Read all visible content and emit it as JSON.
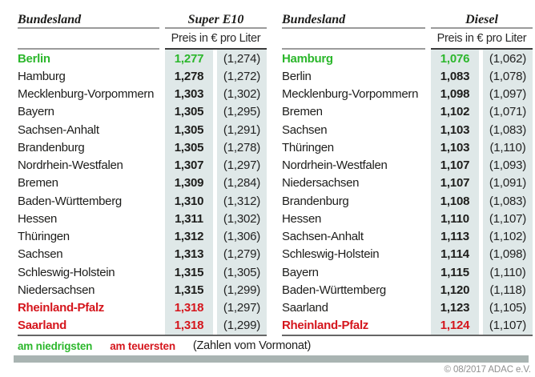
{
  "colors": {
    "green": "#2cb72c",
    "red": "#d5161d",
    "cell_bg": "#dfe8e8",
    "bar": "#a9b4b2"
  },
  "tables": [
    {
      "col_bundesland": "Bundesland",
      "col_fuel": "Super E10",
      "col_price_unit": "Preis in € pro Liter",
      "rows": [
        {
          "state": "Berlin",
          "price": "1,277",
          "prev": "(1,274)",
          "highlight": "green"
        },
        {
          "state": "Hamburg",
          "price": "1,278",
          "prev": "(1,272)",
          "highlight": ""
        },
        {
          "state": "Mecklenburg-Vorpommern",
          "price": "1,303",
          "prev": "(1,302)",
          "highlight": ""
        },
        {
          "state": "Bayern",
          "price": "1,305",
          "prev": "(1,295)",
          "highlight": ""
        },
        {
          "state": "Sachsen-Anhalt",
          "price": "1,305",
          "prev": "(1,291)",
          "highlight": ""
        },
        {
          "state": "Brandenburg",
          "price": "1,305",
          "prev": "(1,278)",
          "highlight": ""
        },
        {
          "state": "Nordrhein-Westfalen",
          "price": "1,307",
          "prev": "(1,297)",
          "highlight": ""
        },
        {
          "state": "Bremen",
          "price": "1,309",
          "prev": "(1,284)",
          "highlight": ""
        },
        {
          "state": "Baden-Württemberg",
          "price": "1,310",
          "prev": "(1,312)",
          "highlight": ""
        },
        {
          "state": "Hessen",
          "price": "1,311",
          "prev": "(1,302)",
          "highlight": ""
        },
        {
          "state": "Thüringen",
          "price": "1,312",
          "prev": "(1,306)",
          "highlight": ""
        },
        {
          "state": "Sachsen",
          "price": "1,313",
          "prev": "(1,279)",
          "highlight": ""
        },
        {
          "state": "Schleswig-Holstein",
          "price": "1,315",
          "prev": "(1,305)",
          "highlight": ""
        },
        {
          "state": "Niedersachsen",
          "price": "1,315",
          "prev": "(1,299)",
          "highlight": ""
        },
        {
          "state": "Rheinland-Pfalz",
          "price": "1,318",
          "prev": "(1,297)",
          "highlight": "red"
        },
        {
          "state": "Saarland",
          "price": "1,318",
          "prev": "(1,299)",
          "highlight": "red"
        }
      ]
    },
    {
      "col_bundesland": "Bundesland",
      "col_fuel": "Diesel",
      "col_price_unit": "Preis in € pro Liter",
      "rows": [
        {
          "state": "Hamburg",
          "price": "1,076",
          "prev": "(1,062)",
          "highlight": "green"
        },
        {
          "state": "Berlin",
          "price": "1,083",
          "prev": "(1,078)",
          "highlight": ""
        },
        {
          "state": "Mecklenburg-Vorpommern",
          "price": "1,098",
          "prev": "(1,097)",
          "highlight": ""
        },
        {
          "state": "Bremen",
          "price": "1,102",
          "prev": "(1,071)",
          "highlight": ""
        },
        {
          "state": "Sachsen",
          "price": "1,103",
          "prev": "(1,083)",
          "highlight": ""
        },
        {
          "state": "Thüringen",
          "price": "1,103",
          "prev": "(1,110)",
          "highlight": ""
        },
        {
          "state": "Nordrhein-Westfalen",
          "price": "1,107",
          "prev": "(1,093)",
          "highlight": ""
        },
        {
          "state": "Niedersachsen",
          "price": "1,107",
          "prev": "(1,091)",
          "highlight": ""
        },
        {
          "state": "Brandenburg",
          "price": "1,108",
          "prev": "(1,083)",
          "highlight": ""
        },
        {
          "state": "Hessen",
          "price": "1,110",
          "prev": "(1,107)",
          "highlight": ""
        },
        {
          "state": "Sachsen-Anhalt",
          "price": "1,113",
          "prev": "(1,102)",
          "highlight": ""
        },
        {
          "state": "Schleswig-Holstein",
          "price": "1,114",
          "prev": "(1,098)",
          "highlight": ""
        },
        {
          "state": "Bayern",
          "price": "1,115",
          "prev": "(1,110)",
          "highlight": ""
        },
        {
          "state": "Baden-Württemberg",
          "price": "1,120",
          "prev": "(1,118)",
          "highlight": ""
        },
        {
          "state": "Saarland",
          "price": "1,123",
          "prev": "(1,105)",
          "highlight": ""
        },
        {
          "state": "Rheinland-Pfalz",
          "price": "1,124",
          "prev": "(1,107)",
          "highlight": "red"
        }
      ]
    }
  ],
  "legend": {
    "lowest": "am niedrigsten",
    "highest": "am teuersten",
    "note": "(Zahlen vom Vormonat)"
  },
  "copyright": "© 08/2017 ADAC e.V.",
  "chart_data": [
    {
      "type": "table",
      "title": "Super E10 — Preis in € pro Liter",
      "columns": [
        "Bundesland",
        "Preis",
        "Vormonat"
      ],
      "rows": [
        [
          "Berlin",
          1.277,
          1.274
        ],
        [
          "Hamburg",
          1.278,
          1.272
        ],
        [
          "Mecklenburg-Vorpommern",
          1.303,
          1.302
        ],
        [
          "Bayern",
          1.305,
          1.295
        ],
        [
          "Sachsen-Anhalt",
          1.305,
          1.291
        ],
        [
          "Brandenburg",
          1.305,
          1.278
        ],
        [
          "Nordrhein-Westfalen",
          1.307,
          1.297
        ],
        [
          "Bremen",
          1.309,
          1.284
        ],
        [
          "Baden-Württemberg",
          1.31,
          1.312
        ],
        [
          "Hessen",
          1.311,
          1.302
        ],
        [
          "Thüringen",
          1.312,
          1.306
        ],
        [
          "Sachsen",
          1.313,
          1.279
        ],
        [
          "Schleswig-Holstein",
          1.315,
          1.305
        ],
        [
          "Niedersachsen",
          1.315,
          1.299
        ],
        [
          "Rheinland-Pfalz",
          1.318,
          1.297
        ],
        [
          "Saarland",
          1.318,
          1.299
        ]
      ],
      "annotations": {
        "am_niedrigsten": [
          "Berlin"
        ],
        "am_teuersten": [
          "Rheinland-Pfalz",
          "Saarland"
        ]
      }
    },
    {
      "type": "table",
      "title": "Diesel — Preis in € pro Liter",
      "columns": [
        "Bundesland",
        "Preis",
        "Vormonat"
      ],
      "rows": [
        [
          "Hamburg",
          1.076,
          1.062
        ],
        [
          "Berlin",
          1.083,
          1.078
        ],
        [
          "Mecklenburg-Vorpommern",
          1.098,
          1.097
        ],
        [
          "Bremen",
          1.102,
          1.071
        ],
        [
          "Sachsen",
          1.103,
          1.083
        ],
        [
          "Thüringen",
          1.103,
          1.11
        ],
        [
          "Nordrhein-Westfalen",
          1.107,
          1.093
        ],
        [
          "Niedersachsen",
          1.107,
          1.091
        ],
        [
          "Brandenburg",
          1.108,
          1.083
        ],
        [
          "Hessen",
          1.11,
          1.107
        ],
        [
          "Sachsen-Anhalt",
          1.113,
          1.102
        ],
        [
          "Schleswig-Holstein",
          1.114,
          1.098
        ],
        [
          "Bayern",
          1.115,
          1.11
        ],
        [
          "Baden-Württemberg",
          1.12,
          1.118
        ],
        [
          "Saarland",
          1.123,
          1.105
        ],
        [
          "Rheinland-Pfalz",
          1.124,
          1.107
        ]
      ],
      "annotations": {
        "am_niedrigsten": [
          "Hamburg"
        ],
        "am_teuersten": [
          "Rheinland-Pfalz"
        ]
      }
    }
  ]
}
